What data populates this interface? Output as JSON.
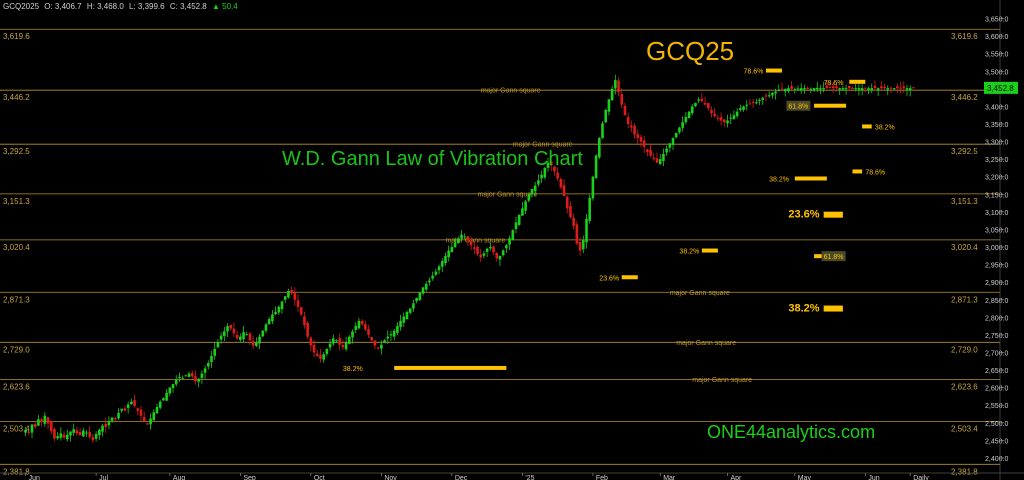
{
  "header": {
    "symbol": "GCQ2025",
    "open": "O: 3,406.7",
    "high": "H: 3,468.0",
    "low": "L: 3,399.6",
    "close": "C: 3,452.8",
    "change": "▲ 50.4"
  },
  "colors": {
    "background": "#000000",
    "up": "#19d119",
    "down": "#e01b1b",
    "gann_line": "#b9932a",
    "marker": "#ffc200",
    "axis_text": "#c7a640"
  },
  "chart_data": {
    "type": "candlestick",
    "title": "GCQ25",
    "subtitle": "W.D. Gann Law of Vibration Chart",
    "brand": "ONE44analytics.com",
    "ylim": [
      2360,
      3680
    ],
    "y_ticks": [
      2400,
      2450,
      2500,
      2550,
      2600,
      2650,
      2700,
      2750,
      2800,
      2850,
      2900,
      2950,
      3000,
      3050,
      3100,
      3150,
      3200,
      3250,
      3300,
      3350,
      3400,
      3450,
      3500,
      3550,
      3600,
      3650
    ],
    "y_tick_labels": [
      "2,400.0",
      "2,450.0",
      "2,500.0",
      "2,550.0",
      "2,600.0",
      "2,650.0",
      "2,700.0",
      "2,750.0",
      "2,800.0",
      "2,850.0",
      "2,900.0",
      "2,950.0",
      "3,000.0",
      "3,050.0",
      "3,100.0",
      "3,150.0",
      "3,200.0",
      "3,250.0",
      "3,300.0",
      "3,350.0",
      "3,400.0",
      "3,450.0",
      "3,500.0",
      "3,550.0",
      "3,600.0",
      "3,650.0"
    ],
    "x_labels": [
      "Jun",
      "Jul",
      "Aug",
      "Sep",
      "Oct",
      "Nov",
      "Dec",
      "'25",
      "Feb",
      "Mar",
      "Apr",
      "May",
      "Jun",
      "Daily"
    ],
    "bar_count": 278,
    "x_label_bars": [
      0,
      22,
      45,
      67,
      89,
      111,
      133,
      155,
      177,
      198,
      219,
      240,
      262,
      276
    ],
    "current_price": 3452.8,
    "current_price_label": "3,452.8",
    "gann_levels": [
      {
        "price": 3619.6,
        "label": "3,619.6",
        "note": ""
      },
      {
        "price": 3446.2,
        "label": "3,446.2",
        "note": "major Gann square",
        "note_bar": 142
      },
      {
        "price": 3292.5,
        "label": "3,292.5",
        "note": "major Gann square",
        "note_bar": 152
      },
      {
        "price": 3151.3,
        "label": "3,151.3",
        "note": "major Gann square",
        "note_bar": 141
      },
      {
        "price": 3020.4,
        "label": "3,020.4",
        "note": "major Gann square",
        "note_bar": 131
      },
      {
        "price": 2871.3,
        "label": "2,871.3",
        "note": "major Gann square",
        "note_bar": 201
      },
      {
        "price": 2729.0,
        "label": "2,729.0",
        "note": "major Gann square",
        "note_bar": 203
      },
      {
        "price": 2623.6,
        "label": "2,623.6",
        "note": "major Gann square",
        "note_bar": 208
      },
      {
        "price": 2503.4,
        "label": "2,503.4",
        "note": ""
      },
      {
        "price": 2381.8,
        "label": "2,381.8",
        "note": ""
      }
    ],
    "fib_markers": [
      {
        "label": "38.2%",
        "bar0": 115,
        "bar1": 150,
        "price": 2656,
        "side": "left",
        "size": "small",
        "label_bar": 99
      },
      {
        "label": "23.6%",
        "bar0": 186,
        "bar1": 191,
        "price": 2914,
        "side": "left",
        "size": "small",
        "label_bar": 179
      },
      {
        "label": "38.2%",
        "bar0": 211,
        "bar1": 216,
        "price": 2990,
        "side": "left",
        "size": "small",
        "label_bar": 204
      },
      {
        "label": "78.6%",
        "bar0": 231,
        "bar1": 236,
        "price": 3502,
        "side": "left",
        "size": "small",
        "label_bar": 224
      },
      {
        "label": "38.2%",
        "bar0": 240,
        "bar1": 250,
        "price": 3195,
        "side": "left",
        "size": "small",
        "label_bar": 232
      },
      {
        "label": "61.8%",
        "bar0": 246,
        "bar1": 256,
        "price": 3402,
        "side": "left",
        "size": "box",
        "label_bar": 238
      },
      {
        "label": "78.6%",
        "bar0": 257,
        "bar1": 262,
        "price": 3470,
        "side": "left",
        "size": "small",
        "label_bar": 249
      },
      {
        "label": "38.2%",
        "bar0": 261,
        "bar1": 264,
        "price": 3343,
        "side": "right",
        "size": "small",
        "label_bar": 265
      },
      {
        "label": "78.6%",
        "bar0": 258,
        "bar1": 261,
        "price": 3215,
        "side": "right",
        "size": "small",
        "label_bar": 262
      },
      {
        "label": "23.6%",
        "bar0": 249,
        "bar1": 255,
        "price": 3092,
        "side": "left",
        "size": "big",
        "label_bar": 238
      },
      {
        "label": "61.8%",
        "bar0": 246,
        "bar1": 249,
        "price": 2974,
        "side": "right",
        "size": "box",
        "label_bar": 249
      },
      {
        "label": "38.2%",
        "bar0": 249,
        "bar1": 255,
        "price": 2825,
        "side": "left",
        "size": "big",
        "label_bar": 238
      }
    ],
    "closes": [
      2480,
      2472,
      2495,
      2488,
      2510,
      2502,
      2520,
      2498,
      2476,
      2455,
      2462,
      2470,
      2458,
      2466,
      2475,
      2482,
      2470,
      2465,
      2478,
      2472,
      2460,
      2450,
      2468,
      2480,
      2492,
      2488,
      2505,
      2515,
      2510,
      2528,
      2540,
      2535,
      2552,
      2560,
      2548,
      2534,
      2520,
      2505,
      2495,
      2512,
      2530,
      2545,
      2560,
      2570,
      2585,
      2600,
      2610,
      2622,
      2630,
      2628,
      2635,
      2640,
      2632,
      2618,
      2625,
      2640,
      2655,
      2670,
      2690,
      2710,
      2730,
      2748,
      2760,
      2775,
      2768,
      2755,
      2740,
      2745,
      2758,
      2752,
      2735,
      2720,
      2728,
      2745,
      2762,
      2780,
      2795,
      2808,
      2815,
      2830,
      2845,
      2860,
      2875,
      2868,
      2850,
      2830,
      2808,
      2778,
      2745,
      2720,
      2700,
      2690,
      2682,
      2695,
      2710,
      2725,
      2740,
      2735,
      2722,
      2715,
      2728,
      2745,
      2760,
      2775,
      2790,
      2780,
      2765,
      2750,
      2735,
      2720,
      2712,
      2722,
      2735,
      2745,
      2752,
      2762,
      2775,
      2790,
      2802,
      2815,
      2825,
      2840,
      2855,
      2870,
      2885,
      2895,
      2905,
      2918,
      2930,
      2945,
      2960,
      2975,
      2990,
      3000,
      3012,
      3025,
      3035,
      3030,
      3018,
      3005,
      2995,
      2980,
      2970,
      2982,
      2995,
      3000,
      2985,
      2968,
      2975,
      2990,
      3005,
      3025,
      3048,
      3070,
      3092,
      3110,
      3130,
      3150,
      3165,
      3175,
      3190,
      3205,
      3225,
      3240,
      3232,
      3215,
      3195,
      3170,
      3145,
      3110,
      3085,
      3060,
      3010,
      2990,
      3020,
      3080,
      3140,
      3200,
      3260,
      3310,
      3352,
      3390,
      3420,
      3450,
      3475,
      3440,
      3405,
      3375,
      3350,
      3340,
      3320,
      3310,
      3300,
      3285,
      3270,
      3260,
      3250,
      3240,
      3250,
      3265,
      3280,
      3295,
      3310,
      3325,
      3340,
      3355,
      3370,
      3385,
      3400,
      3410,
      3420,
      3415,
      3405,
      3395,
      3380,
      3372,
      3365,
      3360,
      3355,
      3360,
      3368,
      3375,
      3385,
      3395,
      3400,
      3405,
      3408,
      3410,
      3412,
      3418,
      3425,
      3430,
      3432,
      3438,
      3442,
      3446,
      3448,
      3450,
      3452,
      3450,
      3449,
      3451,
      3452,
      3452,
      3451,
      3450,
      3452,
      3453,
      3452,
      3452,
      3452,
      3452,
      3452,
      3452,
      3452,
      3452,
      3452,
      3452,
      3452,
      3452,
      3452,
      3452,
      3452,
      3452,
      3452,
      3452,
      3452,
      3452,
      3452,
      3452,
      3452,
      3452,
      3452,
      3452,
      3452,
      3452,
      3452,
      3452,
      3452,
      3452,
      3452,
      3452,
      3452,
      3452,
      3452,
      3452,
      3452,
      3452,
      3452,
      3452,
      3452
    ]
  }
}
